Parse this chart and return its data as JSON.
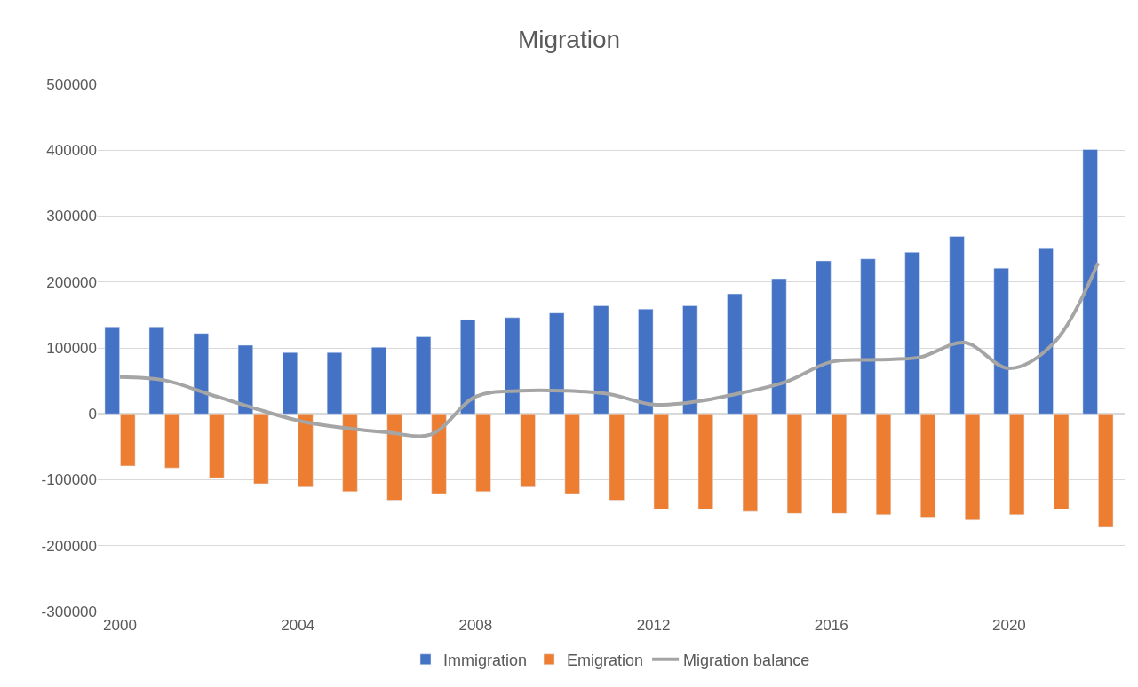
{
  "chart_data": {
    "type": "bar",
    "title": "Migration",
    "x": [
      2000,
      2001,
      2002,
      2003,
      2004,
      2005,
      2006,
      2007,
      2008,
      2009,
      2010,
      2011,
      2012,
      2013,
      2014,
      2015,
      2016,
      2017,
      2018,
      2019,
      2020,
      2021,
      2022
    ],
    "series": [
      {
        "name": "Immigration",
        "color": "#4472c4",
        "values": [
          132000,
          132000,
          122000,
          104000,
          93000,
          93000,
          101000,
          117000,
          143000,
          146000,
          153000,
          164000,
          159000,
          164000,
          182000,
          205000,
          232000,
          235000,
          245000,
          269000,
          221000,
          252000,
          401000
        ]
      },
      {
        "name": "Emigration",
        "color": "#ed7d31",
        "values": [
          -79000,
          -82000,
          -97000,
          -106000,
          -111000,
          -118000,
          -131000,
          -121000,
          -118000,
          -111000,
          -121000,
          -131000,
          -145000,
          -145000,
          -148000,
          -151000,
          -151000,
          -153000,
          -158000,
          -161000,
          -153000,
          -145000,
          -172000
        ]
      },
      {
        "name": "Migration balance",
        "color": "#a5a5a5",
        "type": "line",
        "values": [
          56000,
          51000,
          30000,
          9000,
          -10000,
          -21000,
          -28000,
          -31000,
          26000,
          35000,
          35000,
          30000,
          14000,
          19000,
          32000,
          49000,
          79000,
          82000,
          86000,
          108000,
          69000,
          107000,
          229000
        ]
      }
    ],
    "xlim": [
      1999.5,
      2022.6
    ],
    "xticks": [
      2000,
      2004,
      2008,
      2012,
      2016,
      2020
    ],
    "ylim": [
      -300000,
      500000
    ],
    "yticks": [
      -300000,
      -200000,
      -100000,
      0,
      100000,
      200000,
      300000,
      400000,
      500000
    ],
    "grid": "y",
    "legend": "bottom",
    "marker": "none",
    "line_style": "solid"
  }
}
